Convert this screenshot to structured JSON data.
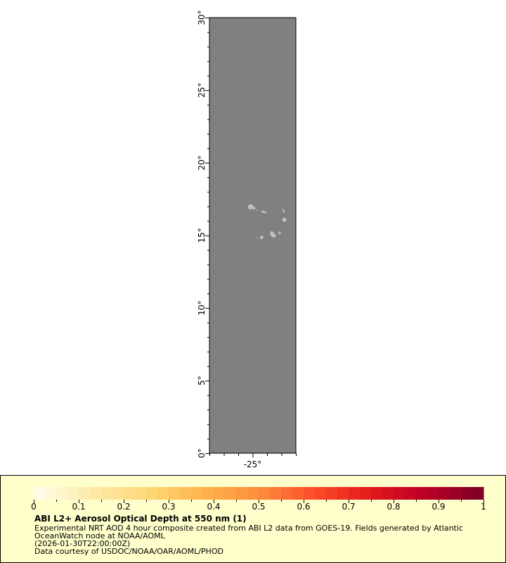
{
  "map": {
    "lat_range": [
      0,
      30
    ],
    "lon_range": [
      -28,
      -22
    ],
    "lat_ticks": [
      0,
      5,
      10,
      15,
      20,
      25,
      30
    ],
    "lat_tick_labels": [
      "0°",
      "5°",
      "10°",
      "15°",
      "20°",
      "25°",
      "30°"
    ],
    "lon_ticks": [
      -25
    ],
    "lon_tick_labels": [
      "-25°"
    ],
    "ocean_color": "#808080",
    "land_color": "#c0c0c0"
  },
  "colorbar": {
    "range": [
      0,
      1
    ],
    "segments": 40,
    "tick_values": [
      0,
      0.1,
      0.2,
      0.3,
      0.4,
      0.5,
      0.6,
      0.7,
      0.8,
      0.9,
      1
    ],
    "tick_labels": [
      "0",
      "0.1",
      "0.2",
      "0.3",
      "0.4",
      "0.5",
      "0.6",
      "0.7",
      "0.8",
      "0.9",
      "1"
    ],
    "palette": [
      "#fffde6",
      "#fee9a8",
      "#fed976",
      "#feb24c",
      "#fd8d3c",
      "#fc4e2a",
      "#e31a1c",
      "#bd0026",
      "#800026"
    ]
  },
  "legend": {
    "title": "ABI L2+ Aerosol Optical Depth at 550 nm (1)",
    "line1": "Experimental NRT AOD 4 hour composite created from ABI L2 data from GOES-19. Fields generated by Atlantic",
    "line2": "OceanWatch node at NOAA/AOML",
    "line3": "(2026-01-30T22:00:00Z)",
    "line4": "Data courtesy of USDOC/NOAA/OAR/AOML/PHOD"
  }
}
